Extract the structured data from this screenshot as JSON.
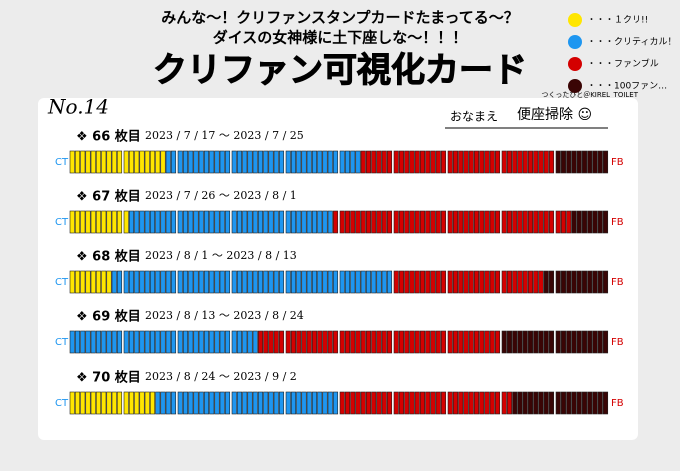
{
  "header": {
    "line1": "みんな〜！クリファンスタンプカードたまってる〜？",
    "line2": "ダイスの女神様に土下座しな〜！！！",
    "title": "クリファン可視化カード"
  },
  "legend": [
    {
      "label": "・・・１クリ!!",
      "color": "#ffe600"
    },
    {
      "label": "・・・クリティカル！",
      "color": "#1e96f0"
    },
    {
      "label": "・・・ファンブル",
      "color": "#d40000"
    },
    {
      "label": "・・・100ファン…",
      "color": "#3a0505"
    }
  ],
  "credit": "つくったひと＠KIREL_TOILET",
  "card": {
    "number": "No.14",
    "name_label": "おなまえ",
    "name": "便座掃除 ☺",
    "left_label": "CT",
    "right_label": "FB",
    "rows": [
      {
        "label": "❖ 66 枚目",
        "dates": "2023 / 7 / 17 〜 2023 / 7 / 25",
        "counts": [
          18,
          36,
          36,
          10
        ]
      },
      {
        "label": "❖ 67 枚目",
        "dates": "2023 / 7 / 26 〜 2023 / 8 / 1",
        "counts": [
          11,
          38,
          44,
          7
        ]
      },
      {
        "label": "❖ 68 枚目",
        "dates": "2023 / 8 / 1 〜 2023 / 8 / 13",
        "counts": [
          8,
          52,
          28,
          12
        ]
      },
      {
        "label": "❖ 69 枚目",
        "dates": "2023 / 8 / 13 〜 2023 / 8 / 24",
        "counts": [
          0,
          35,
          45,
          20
        ]
      },
      {
        "label": "❖ 70 枚目",
        "dates": "2023 / 8 / 24 〜 2023 / 9 / 2",
        "counts": [
          16,
          34,
          32,
          18
        ]
      }
    ]
  }
}
